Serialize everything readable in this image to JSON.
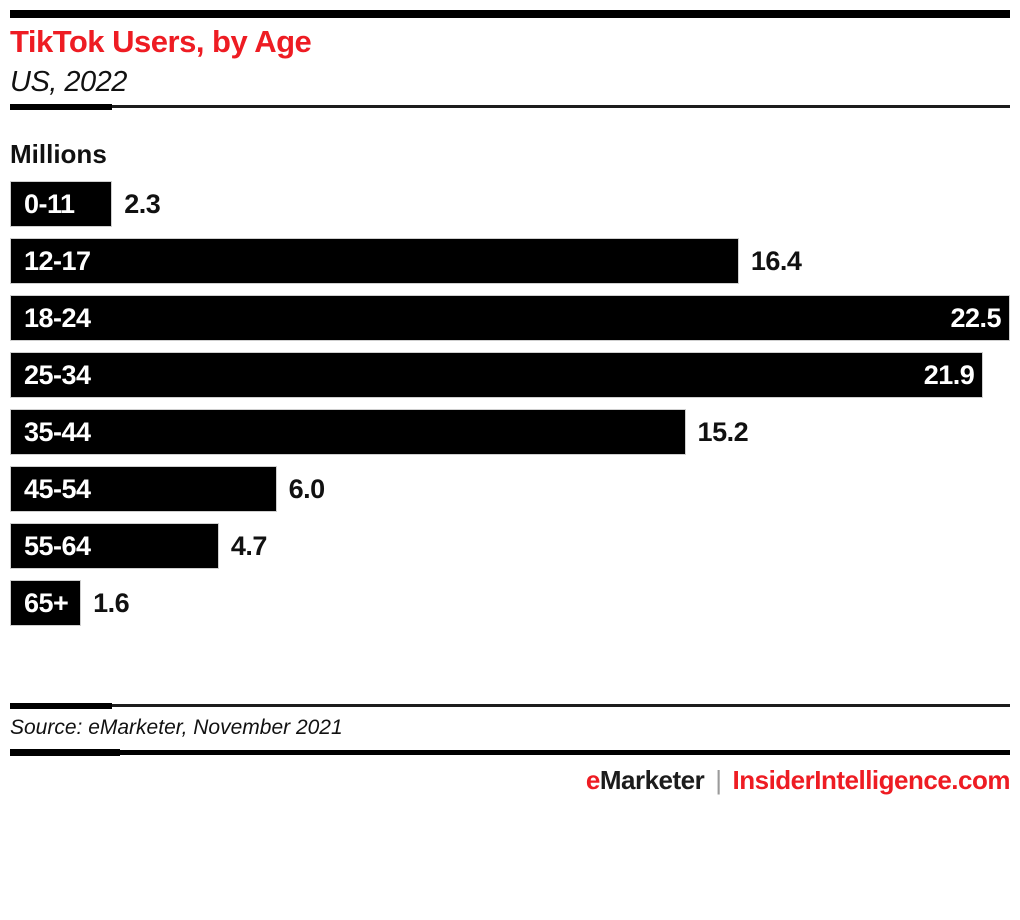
{
  "header": {
    "title": "TikTok Users, by Age",
    "subtitle": "US, 2022"
  },
  "chart_data": {
    "type": "bar",
    "orientation": "horizontal",
    "title": "TikTok Users, by Age",
    "subtitle": "US, 2022",
    "unit_label": "Millions",
    "categories": [
      "0-11",
      "12-17",
      "18-24",
      "25-34",
      "35-44",
      "45-54",
      "55-64",
      "65+"
    ],
    "values": [
      2.3,
      16.4,
      22.5,
      21.9,
      15.2,
      6.0,
      4.7,
      1.6
    ],
    "value_labels": [
      "2.3",
      "16.4",
      "22.5",
      "21.9",
      "15.2",
      "6.0",
      "4.7",
      "1.6"
    ],
    "value_label_inside": [
      false,
      false,
      true,
      true,
      false,
      false,
      false,
      false
    ],
    "xlim": [
      0,
      22.5
    ],
    "grid": false,
    "legend": false
  },
  "source": {
    "text": "Source: eMarketer, November 2021"
  },
  "footer": {
    "brand_e": "e",
    "brand_rest": "Marketer",
    "separator": "|",
    "site": "InsiderIntelligence.com"
  },
  "colors": {
    "accent_red": "#ee1c23",
    "bar_color": "#000000",
    "text_color": "#111111",
    "separator_gray": "#9b9b9b"
  }
}
